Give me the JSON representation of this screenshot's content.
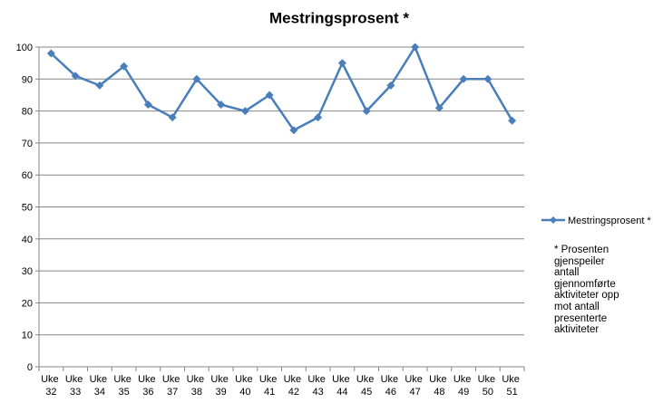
{
  "chart_data": {
    "type": "line",
    "title": "Mestringsprosent *",
    "categories": [
      "Uke 32",
      "Uke 33",
      "Uke 34",
      "Uke 35",
      "Uke 36",
      "Uke 37",
      "Uke 38",
      "Uke 39",
      "Uke 40",
      "Uke 41",
      "Uke 42",
      "Uke 43",
      "Uke 44",
      "Uke 45",
      "Uke 46",
      "Uke 47",
      "Uke 48",
      "Uke 49",
      "Uke 50",
      "Uke 51"
    ],
    "series": [
      {
        "name": "Mestringsprosent *",
        "color": "#4a7ebb",
        "values": [
          98,
          91,
          88,
          94,
          82,
          78,
          90,
          82,
          80,
          85,
          74,
          78,
          95,
          80,
          88,
          100,
          81,
          90,
          90,
          77
        ]
      }
    ],
    "ylim": [
      0,
      100
    ],
    "yticks": [
      0,
      10,
      20,
      30,
      40,
      50,
      60,
      70,
      80,
      90,
      100
    ],
    "grid": true,
    "legend": "right",
    "annotation": "* Prosenten gjenspeiler antall gjennomførte aktiviteter opp mot antall presenterte aktiviteter"
  }
}
